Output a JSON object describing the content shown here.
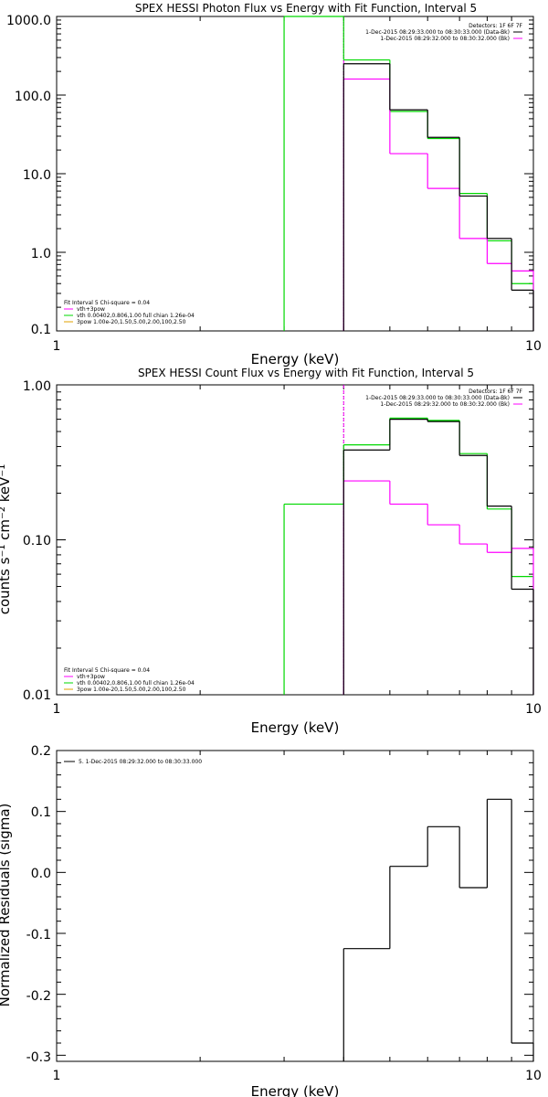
{
  "chart_data": [
    {
      "type": "line",
      "title": "SPEX HESSI Photon Flux vs Energy with Fit Function, Interval 5",
      "xlabel": "Energy (keV)",
      "ylabel": "",
      "xscale": "log",
      "yscale": "log",
      "xlim": [
        1,
        10
      ],
      "ylim": [
        0.1,
        1000
      ],
      "xticks": [
        "1",
        "10"
      ],
      "yticks": [
        "1000.0",
        "100.0",
        "10.0",
        "1.0",
        "0.1"
      ],
      "legend_top": [
        "Detectors: 1F 6F 7F",
        "1-Dec-2015 08:29:33.000 to 08:30:33.000 (Data-Bk)",
        "1-Dec-2015 08:29:32.000 to 08:30:32.000 (Bk)"
      ],
      "legend_bottom": [
        "Fit Interval 5   Chi-square = 0.04",
        "vth+3pow",
        "vth 0.00402,0.806,1.00  full chian 1.26e-04",
        "3pow 1.00e-20,1.50,5.00,2.00,100,2.50"
      ],
      "colors": {
        "data": "#000000",
        "bk": "#ff00ff",
        "fit": "#00d800",
        "pow": "#e0a000"
      },
      "series": [
        {
          "name": "Data-Bk",
          "role": "data",
          "edges": [
            4,
            5,
            6,
            7,
            8,
            9,
            10
          ],
          "values": [
            250,
            65,
            29,
            5.2,
            1.5,
            0.33
          ]
        },
        {
          "name": "Bk",
          "role": "bk",
          "edges": [
            4,
            5,
            6,
            7,
            8,
            9,
            10
          ],
          "values": [
            160,
            18,
            6.5,
            1.5,
            0.72,
            0.58
          ]
        },
        {
          "name": "vth+3pow",
          "role": "fit",
          "edges": [
            3,
            4,
            5,
            6,
            7,
            8,
            9,
            10
          ],
          "values": [
            1000,
            280,
            62,
            28,
            5.6,
            1.4,
            0.4
          ]
        }
      ],
      "markers": [
        {
          "x": 4,
          "style": "dotted",
          "color": "#000000"
        },
        {
          "x": 4,
          "style": "dashed",
          "color": "#ff00ff"
        }
      ]
    },
    {
      "type": "line",
      "title": "SPEX HESSI Count Flux vs Energy with Fit Function, Interval 5",
      "xlabel": "Energy (keV)",
      "ylabel": "counts s⁻¹ cm⁻² keV⁻¹",
      "xscale": "log",
      "yscale": "log",
      "xlim": [
        1,
        10
      ],
      "ylim": [
        0.01,
        1.0
      ],
      "xticks": [
        "1",
        "10"
      ],
      "yticks": [
        "1.00",
        "0.10",
        "0.01"
      ],
      "legend_top": [
        "Detectors: 1F 6F 7F",
        "1-Dec-2015 08:29:33.000 to 08:30:33.000 (Data-Bk)",
        "1-Dec-2015 08:29:32.000 to 08:30:32.000 (Bk)"
      ],
      "legend_bottom": [
        "Fit Interval 5   Chi-square = 0.04",
        "vth+3pow",
        "vth 0.00402,0.806,1.00  full chian 1.26e-04",
        "3pow 1.00e-20,1.50,5.00,2.00,100,2.50"
      ],
      "colors": {
        "data": "#000000",
        "bk": "#ff00ff",
        "fit": "#00d800",
        "pow": "#e0a000"
      },
      "series": [
        {
          "name": "Data-Bk",
          "role": "data",
          "edges": [
            4,
            5,
            6,
            7,
            8,
            9,
            10
          ],
          "values": [
            0.38,
            0.6,
            0.58,
            0.35,
            0.165,
            0.048
          ]
        },
        {
          "name": "Bk",
          "role": "bk",
          "edges": [
            4,
            5,
            6,
            7,
            8,
            9,
            10
          ],
          "values": [
            0.24,
            0.17,
            0.125,
            0.094,
            0.083,
            0.088
          ]
        },
        {
          "name": "vth+3pow",
          "role": "fit",
          "edges": [
            3,
            4,
            5,
            6,
            7,
            8,
            9,
            10
          ],
          "values": [
            0.17,
            0.41,
            0.61,
            0.59,
            0.36,
            0.158,
            0.058
          ]
        }
      ],
      "markers": [
        {
          "x": 4,
          "style": "dotted",
          "color": "#000000"
        },
        {
          "x": 4,
          "style": "dashed",
          "color": "#ff00ff"
        }
      ]
    },
    {
      "type": "line",
      "title": "",
      "xlabel": "Energy (keV)",
      "ylabel": "Normalized Residuals (sigma)",
      "xscale": "log",
      "yscale": "linear",
      "xlim": [
        1,
        10
      ],
      "ylim": [
        -0.31,
        0.2
      ],
      "xticks": [
        "1",
        "10"
      ],
      "yticks": [
        "0.2",
        "0.1",
        "0.0",
        "-0.1",
        "-0.2",
        "-0.3"
      ],
      "legend_top": [
        "5.  1-Dec-2015 08:29:32.000 to 08:30:33.000"
      ],
      "legend_bottom": [],
      "colors": {
        "data": "#000000"
      },
      "series": [
        {
          "name": "5.  1-Dec-2015 08:29:32.000 to 08:30:33.000",
          "role": "data",
          "edges": [
            4,
            5,
            6,
            7,
            8,
            9,
            10
          ],
          "values": [
            -0.125,
            0.01,
            0.075,
            -0.025,
            0.12,
            -0.28
          ]
        }
      ],
      "markers": []
    }
  ]
}
